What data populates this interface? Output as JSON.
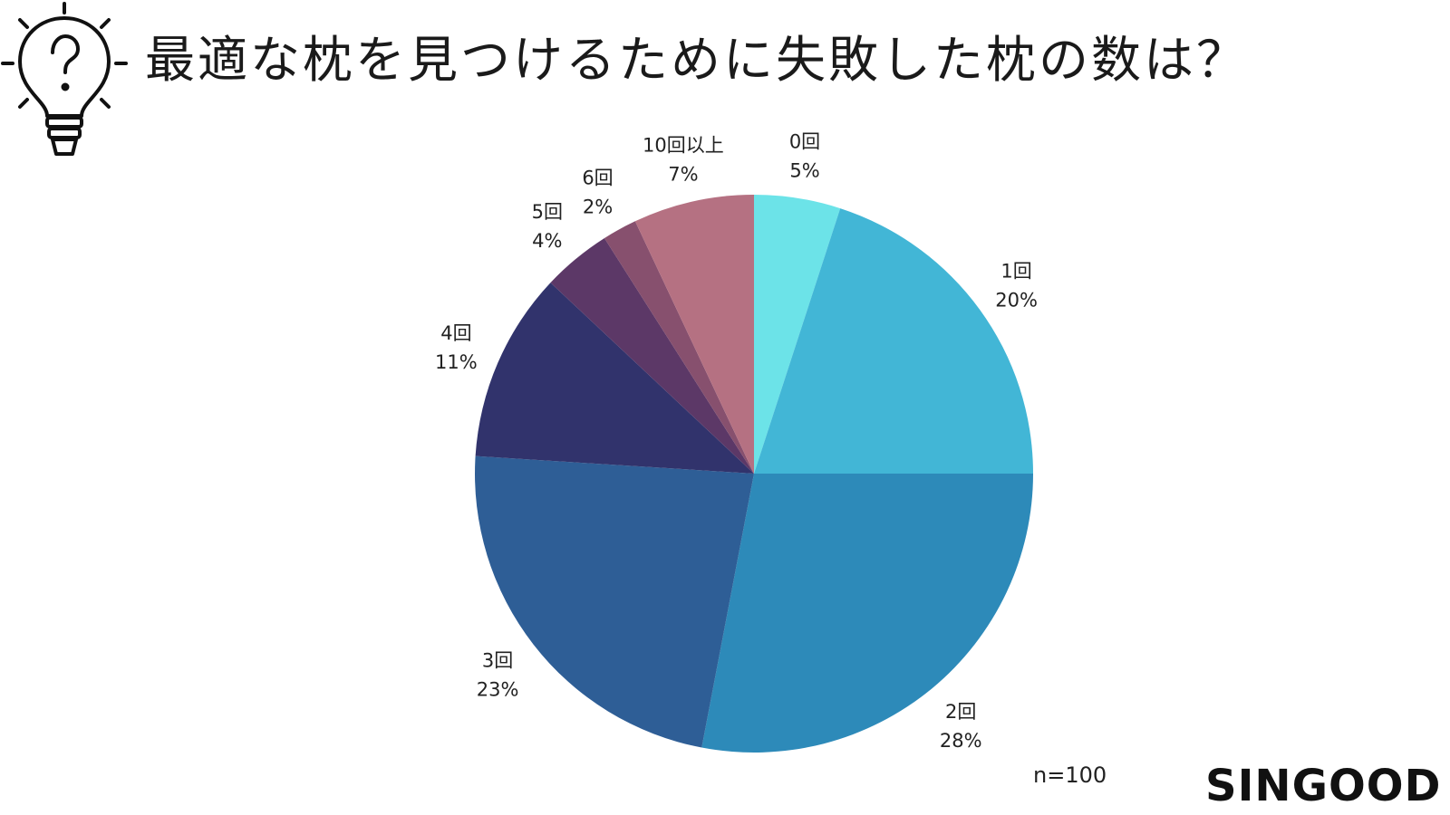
{
  "title": "最適な枕を見つけるために失敗した枕の数は？",
  "sample_size": "n=100",
  "brand": "SINGOOD",
  "header_icon": "lightbulb-question-icon",
  "chart_data": {
    "type": "pie",
    "title": "最適な枕を見つけるために失敗した枕の数は？",
    "start_angle": "12 o'clock",
    "direction": "clockwise",
    "slices": [
      {
        "category": "0回",
        "value": 5,
        "label": "5%",
        "color": "#6ce3e8"
      },
      {
        "category": "1回",
        "value": 20,
        "label": "20%",
        "color": "#42b6d6"
      },
      {
        "category": "2回",
        "value": 28,
        "label": "28%",
        "color": "#2d8ab9"
      },
      {
        "category": "3回",
        "value": 23,
        "label": "23%",
        "color": "#2e5e96"
      },
      {
        "category": "4回",
        "value": 11,
        "label": "11%",
        "color": "#31336c"
      },
      {
        "category": "5回",
        "value": 4,
        "label": "4%",
        "color": "#5c3867"
      },
      {
        "category": "6回",
        "value": 2,
        "label": "2%",
        "color": "#87506e"
      },
      {
        "category": "10回以上",
        "value": 7,
        "label": "7%",
        "color": "#b57182"
      }
    ],
    "note": "n=100"
  }
}
